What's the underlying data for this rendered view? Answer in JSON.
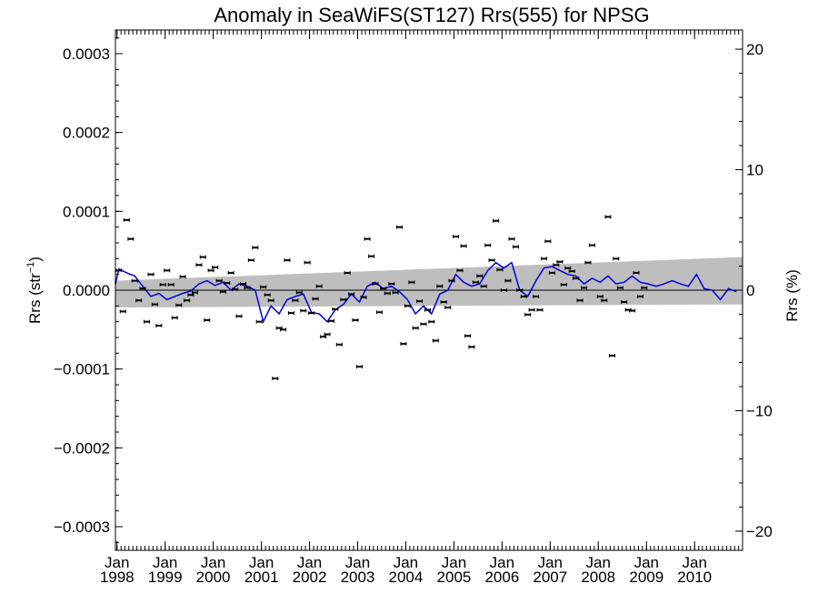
{
  "chart_data": {
    "type": "scatter",
    "title": "Anomaly in SeaWiFS(ST127) Rrs(555) for NPSG",
    "ylabel_left_main": "Rrs (str",
    "ylabel_left_sup": "−1",
    "ylabel_left_end": ")",
    "ylabel_right": "Rrs (%)",
    "x_range": [
      "1997-12-20",
      "2010-12-31"
    ],
    "ylim_left": [
      -0.00033,
      0.00033
    ],
    "ylim_right": [
      -21.59,
      21.59
    ],
    "y_ticks_left": [
      {
        "value": 0.0003,
        "label": "0.0003"
      },
      {
        "value": 0.0002,
        "label": "0.0002"
      },
      {
        "value": 0.0001,
        "label": "0.0001"
      },
      {
        "value": 0.0,
        "label": "0.0000"
      },
      {
        "value": -0.0001,
        "label": "−0.0001"
      },
      {
        "value": -0.0002,
        "label": "−0.0002"
      },
      {
        "value": -0.0003,
        "label": "−0.0003"
      }
    ],
    "y_ticks_right": [
      {
        "value": 20,
        "label": "20"
      },
      {
        "value": 10,
        "label": "10"
      },
      {
        "value": 0,
        "label": "0"
      },
      {
        "value": -10,
        "label": "−10"
      },
      {
        "value": -20,
        "label": "−20"
      }
    ],
    "x_ticks": [
      {
        "date": "1998-01-01",
        "month": "Jan",
        "year": "1998"
      },
      {
        "date": "1999-01-01",
        "month": "Jan",
        "year": "1999"
      },
      {
        "date": "2000-01-01",
        "month": "Jan",
        "year": "2000"
      },
      {
        "date": "2001-01-01",
        "month": "Jan",
        "year": "2001"
      },
      {
        "date": "2002-01-01",
        "month": "Jan",
        "year": "2002"
      },
      {
        "date": "2003-01-01",
        "month": "Jan",
        "year": "2003"
      },
      {
        "date": "2004-01-01",
        "month": "Jan",
        "year": "2004"
      },
      {
        "date": "2005-01-01",
        "month": "Jan",
        "year": "2005"
      },
      {
        "date": "2006-01-01",
        "month": "Jan",
        "year": "2006"
      },
      {
        "date": "2007-01-01",
        "month": "Jan",
        "year": "2007"
      },
      {
        "date": "2008-01-01",
        "month": "Jan",
        "year": "2008"
      },
      {
        "date": "2009-01-01",
        "month": "Jan",
        "year": "2009"
      },
      {
        "date": "2010-01-01",
        "month": "Jan",
        "year": "2010"
      }
    ],
    "colors": {
      "points": "#000000",
      "smoothed_line": "#0000dd",
      "confidence_band": "#bebebe",
      "zero_line": "#000000"
    },
    "confidence_band": {
      "start": {
        "date": "1997-12-20",
        "lower": -2.2e-05,
        "upper": 1.2e-05
      },
      "end": {
        "date": "2010-12-31",
        "lower": -1.8e-05,
        "upper": 4.2e-05
      }
    },
    "points": [
      {
        "x": "1997-09",
        "y": 5.8e-05
      },
      {
        "x": "1997-10",
        "y": 1.2e-05
      },
      {
        "x": "1997-11",
        "y": -1.3e-05
      },
      {
        "x": "1997-12",
        "y": -8e-06
      },
      {
        "x": "1998-01",
        "y": 2.5e-05
      },
      {
        "x": "1998-02",
        "y": -2.7e-05
      },
      {
        "x": "1998-03",
        "y": 8.9e-05
      },
      {
        "x": "1998-04",
        "y": 6.5e-05
      },
      {
        "x": "1998-05",
        "y": 1.2e-05
      },
      {
        "x": "1998-06",
        "y": -1.3e-05
      },
      {
        "x": "1998-07",
        "y": 2e-06
      },
      {
        "x": "1998-08",
        "y": -4e-05
      },
      {
        "x": "1998-09",
        "y": 2e-05
      },
      {
        "x": "1998-10",
        "y": -1.8e-05
      },
      {
        "x": "1998-11",
        "y": -4.5e-05
      },
      {
        "x": "1998-12",
        "y": 7e-06
      },
      {
        "x": "1999-01",
        "y": 2.5e-05
      },
      {
        "x": "1999-02",
        "y": 7e-06
      },
      {
        "x": "1999-03",
        "y": -3.5e-05
      },
      {
        "x": "1999-04",
        "y": -1.9e-05
      },
      {
        "x": "1999-05",
        "y": 1.7e-05
      },
      {
        "x": "1999-06",
        "y": -1.3e-05
      },
      {
        "x": "1999-07",
        "y": -6e-06
      },
      {
        "x": "1999-08",
        "y": -3e-06
      },
      {
        "x": "1999-09",
        "y": 3.2e-05
      },
      {
        "x": "1999-10",
        "y": 4.2e-05
      },
      {
        "x": "1999-11",
        "y": -3.8e-05
      },
      {
        "x": "1999-12",
        "y": 2.5e-05
      },
      {
        "x": "2000-01",
        "y": 2.9e-05
      },
      {
        "x": "2000-02",
        "y": 1.2e-05
      },
      {
        "x": "2000-03",
        "y": -2e-06
      },
      {
        "x": "2000-04",
        "y": 9e-06
      },
      {
        "x": "2000-05",
        "y": 2.2e-05
      },
      {
        "x": "2000-06",
        "y": 1e-06
      },
      {
        "x": "2000-07",
        "y": -3.3e-05
      },
      {
        "x": "2000-08",
        "y": 8e-06
      },
      {
        "x": "2000-09",
        "y": 3e-06
      },
      {
        "x": "2000-10",
        "y": 3.8e-05
      },
      {
        "x": "2000-11",
        "y": 5.4e-05
      },
      {
        "x": "2000-12",
        "y": -4e-05
      },
      {
        "x": "2001-01",
        "y": 4e-06
      },
      {
        "x": "2001-02",
        "y": -6e-06
      },
      {
        "x": "2001-03",
        "y": -1.3e-05
      },
      {
        "x": "2001-04",
        "y": -0.000112
      },
      {
        "x": "2001-05",
        "y": -4.8e-05
      },
      {
        "x": "2001-06",
        "y": -5e-05
      },
      {
        "x": "2001-07",
        "y": 3.8e-05
      },
      {
        "x": "2001-08",
        "y": -2.9e-05
      },
      {
        "x": "2001-09",
        "y": -1.3e-05
      },
      {
        "x": "2001-10",
        "y": -3e-06
      },
      {
        "x": "2001-11",
        "y": -2.6e-05
      },
      {
        "x": "2001-12",
        "y": 3.5e-05
      },
      {
        "x": "2002-01",
        "y": -2.9e-05
      },
      {
        "x": "2002-02",
        "y": -1.1e-05
      },
      {
        "x": "2002-03",
        "y": 5e-06
      },
      {
        "x": "2002-04",
        "y": -5.9e-05
      },
      {
        "x": "2002-05",
        "y": -5.6e-05
      },
      {
        "x": "2002-06",
        "y": -3.9e-05
      },
      {
        "x": "2002-07",
        "y": -2.4e-05
      },
      {
        "x": "2002-08",
        "y": -6.9e-05
      },
      {
        "x": "2002-09",
        "y": -1.2e-05
      },
      {
        "x": "2002-10",
        "y": 2.2e-05
      },
      {
        "x": "2002-11",
        "y": -5e-06
      },
      {
        "x": "2002-12",
        "y": -3.8e-05
      },
      {
        "x": "2003-01",
        "y": -9.7e-05
      },
      {
        "x": "2003-02",
        "y": -9e-06
      },
      {
        "x": "2003-03",
        "y": 6.5e-05
      },
      {
        "x": "2003-04",
        "y": 4.3e-05
      },
      {
        "x": "2003-05",
        "y": 8e-06
      },
      {
        "x": "2003-06",
        "y": -2.8e-05
      },
      {
        "x": "2003-07",
        "y": 2e-06
      },
      {
        "x": "2003-08",
        "y": -4e-06
      },
      {
        "x": "2003-09",
        "y": 8e-06
      },
      {
        "x": "2003-10",
        "y": -3e-06
      },
      {
        "x": "2003-11",
        "y": 8e-05
      },
      {
        "x": "2003-12",
        "y": -6.8e-05
      },
      {
        "x": "2004-01",
        "y": -2e-05
      },
      {
        "x": "2004-02",
        "y": 1e-05
      },
      {
        "x": "2004-03",
        "y": -4.8e-05
      },
      {
        "x": "2004-04",
        "y": -1.4e-05
      },
      {
        "x": "2004-05",
        "y": -4.3e-05
      },
      {
        "x": "2004-06",
        "y": -2.5e-05
      },
      {
        "x": "2004-07",
        "y": -4e-05
      },
      {
        "x": "2004-08",
        "y": -6.4e-05
      },
      {
        "x": "2004-09",
        "y": 5e-06
      },
      {
        "x": "2004-10",
        "y": -1.5e-05
      },
      {
        "x": "2004-11",
        "y": -2.2e-05
      },
      {
        "x": "2004-12",
        "y": 1.2e-05
      },
      {
        "x": "2005-01",
        "y": 6.8e-05
      },
      {
        "x": "2005-02",
        "y": 2.5e-05
      },
      {
        "x": "2005-03",
        "y": 5.6e-05
      },
      {
        "x": "2005-04",
        "y": -5.8e-05
      },
      {
        "x": "2005-05",
        "y": -7.2e-05
      },
      {
        "x": "2005-06",
        "y": 1e-05
      },
      {
        "x": "2005-07",
        "y": 1.8e-05
      },
      {
        "x": "2005-08",
        "y": 5e-06
      },
      {
        "x": "2005-09",
        "y": 5.7e-05
      },
      {
        "x": "2005-10",
        "y": 3.8e-05
      },
      {
        "x": "2005-11",
        "y": 8.8e-05
      },
      {
        "x": "2005-12",
        "y": 2.6e-05
      },
      {
        "x": "2006-01",
        "y": 0.0
      },
      {
        "x": "2006-02",
        "y": 1.2e-05
      },
      {
        "x": "2006-03",
        "y": 6.5e-05
      },
      {
        "x": "2006-04",
        "y": 5.5e-05
      },
      {
        "x": "2006-05",
        "y": 0.0
      },
      {
        "x": "2006-06",
        "y": -8e-06
      },
      {
        "x": "2006-07",
        "y": -3.1e-05
      },
      {
        "x": "2006-08",
        "y": -2.5e-05
      },
      {
        "x": "2006-09",
        "y": -8e-06
      },
      {
        "x": "2006-10",
        "y": -2.5e-05
      },
      {
        "x": "2006-11",
        "y": 4e-05
      },
      {
        "x": "2006-12",
        "y": 6.2e-05
      },
      {
        "x": "2007-01",
        "y": 2.2e-05
      },
      {
        "x": "2007-02",
        "y": 3.2e-05
      },
      {
        "x": "2007-03",
        "y": 3.6e-05
      },
      {
        "x": "2007-04",
        "y": 7e-06
      },
      {
        "x": "2007-05",
        "y": 2.8e-05
      },
      {
        "x": "2007-06",
        "y": 2.4e-05
      },
      {
        "x": "2007-07",
        "y": 1.5e-05
      },
      {
        "x": "2007-08",
        "y": -1.3e-05
      },
      {
        "x": "2007-09",
        "y": 3e-06
      },
      {
        "x": "2007-10",
        "y": 3.5e-05
      },
      {
        "x": "2007-11",
        "y": 5.7e-05
      },
      {
        "x": "2008-01",
        "y": -8e-06
      },
      {
        "x": "2008-02",
        "y": -1.3e-05
      },
      {
        "x": "2008-03",
        "y": 9.3e-05
      },
      {
        "x": "2008-04",
        "y": -8.3e-05
      },
      {
        "x": "2008-05",
        "y": 4e-05
      },
      {
        "x": "2008-06",
        "y": 3e-06
      },
      {
        "x": "2008-07",
        "y": -1.5e-05
      },
      {
        "x": "2008-08",
        "y": -2.5e-05
      },
      {
        "x": "2008-09",
        "y": -2.6e-05
      },
      {
        "x": "2008-10",
        "y": 2.2e-05
      },
      {
        "x": "2008-11",
        "y": -8e-06
      },
      {
        "x": "2008-12",
        "y": 3e-06
      }
    ],
    "smoothed": [
      {
        "x": "1997-09",
        "y": 1.2e-05
      },
      {
        "x": "1997-11",
        "y": 8e-06
      },
      {
        "x": "1998-01",
        "y": 2.7e-05
      },
      {
        "x": "1998-03",
        "y": 2.2e-05
      },
      {
        "x": "1998-05",
        "y": 1.8e-05
      },
      {
        "x": "1998-07",
        "y": 5e-06
      },
      {
        "x": "1998-09",
        "y": -8e-06
      },
      {
        "x": "1998-11",
        "y": -4e-06
      },
      {
        "x": "1999-01",
        "y": -1.2e-05
      },
      {
        "x": "1999-03",
        "y": -8e-06
      },
      {
        "x": "1999-05",
        "y": -4e-06
      },
      {
        "x": "1999-07",
        "y": -1e-06
      },
      {
        "x": "1999-09",
        "y": 8e-06
      },
      {
        "x": "1999-11",
        "y": 1.2e-05
      },
      {
        "x": "2000-01",
        "y": 6e-06
      },
      {
        "x": "2000-03",
        "y": 1e-05
      },
      {
        "x": "2000-05",
        "y": 0.0
      },
      {
        "x": "2000-07",
        "y": 8e-06
      },
      {
        "x": "2000-09",
        "y": 5e-06
      },
      {
        "x": "2000-11",
        "y": 0.0
      },
      {
        "x": "2001-01",
        "y": -4e-05
      },
      {
        "x": "2001-03",
        "y": -2e-05
      },
      {
        "x": "2001-05",
        "y": -3e-05
      },
      {
        "x": "2001-07",
        "y": -1.2e-05
      },
      {
        "x": "2001-09",
        "y": -8e-06
      },
      {
        "x": "2001-11",
        "y": -5e-06
      },
      {
        "x": "2002-01",
        "y": -2.8e-05
      },
      {
        "x": "2002-03",
        "y": -3e-05
      },
      {
        "x": "2002-05",
        "y": -4e-05
      },
      {
        "x": "2002-07",
        "y": -2.5e-05
      },
      {
        "x": "2002-09",
        "y": -1.8e-05
      },
      {
        "x": "2002-11",
        "y": -5e-06
      },
      {
        "x": "2003-01",
        "y": -1.5e-05
      },
      {
        "x": "2003-03",
        "y": 5e-06
      },
      {
        "x": "2003-05",
        "y": 1e-05
      },
      {
        "x": "2003-07",
        "y": 2e-06
      },
      {
        "x": "2003-09",
        "y": 5e-06
      },
      {
        "x": "2003-11",
        "y": -2e-06
      },
      {
        "x": "2004-01",
        "y": -1.2e-05
      },
      {
        "x": "2004-03",
        "y": -3e-05
      },
      {
        "x": "2004-05",
        "y": -2e-05
      },
      {
        "x": "2004-07",
        "y": -3e-05
      },
      {
        "x": "2004-09",
        "y": -5e-06
      },
      {
        "x": "2004-11",
        "y": 0.0
      },
      {
        "x": "2005-01",
        "y": 2e-05
      },
      {
        "x": "2005-03",
        "y": 1e-05
      },
      {
        "x": "2005-05",
        "y": 5e-06
      },
      {
        "x": "2005-07",
        "y": 8e-06
      },
      {
        "x": "2005-09",
        "y": 2.5e-05
      },
      {
        "x": "2005-11",
        "y": 3.5e-05
      },
      {
        "x": "2006-01",
        "y": 2.8e-05
      },
      {
        "x": "2006-03",
        "y": 3.5e-05
      },
      {
        "x": "2006-05",
        "y": 0.0
      },
      {
        "x": "2006-07",
        "y": -8e-06
      },
      {
        "x": "2006-09",
        "y": 1.2e-05
      },
      {
        "x": "2006-11",
        "y": 2.8e-05
      },
      {
        "x": "2007-01",
        "y": 3e-05
      },
      {
        "x": "2007-03",
        "y": 2.5e-05
      },
      {
        "x": "2007-05",
        "y": 2e-05
      },
      {
        "x": "2007-07",
        "y": 1.8e-05
      },
      {
        "x": "2007-09",
        "y": 8e-06
      },
      {
        "x": "2007-11",
        "y": 1.5e-05
      },
      {
        "x": "2008-01",
        "y": 1e-05
      },
      {
        "x": "2008-03",
        "y": 1.8e-05
      },
      {
        "x": "2008-05",
        "y": 8e-06
      },
      {
        "x": "2008-07",
        "y": 1e-05
      },
      {
        "x": "2008-09",
        "y": 1.8e-05
      },
      {
        "x": "2008-11",
        "y": 1e-05
      },
      {
        "x": "2009-01",
        "y": 8e-06
      },
      {
        "x": "2009-03",
        "y": 5e-06
      },
      {
        "x": "2009-05",
        "y": 8e-06
      },
      {
        "x": "2009-07",
        "y": 1.2e-05
      },
      {
        "x": "2009-09",
        "y": 8e-06
      },
      {
        "x": "2009-11",
        "y": 5e-06
      },
      {
        "x": "2010-01",
        "y": 2e-05
      },
      {
        "x": "2010-03",
        "y": 2e-06
      },
      {
        "x": "2010-05",
        "y": 0.0
      },
      {
        "x": "2010-07",
        "y": -1.2e-05
      },
      {
        "x": "2010-09",
        "y": 2e-06
      },
      {
        "x": "2010-11",
        "y": -2e-06
      }
    ]
  }
}
